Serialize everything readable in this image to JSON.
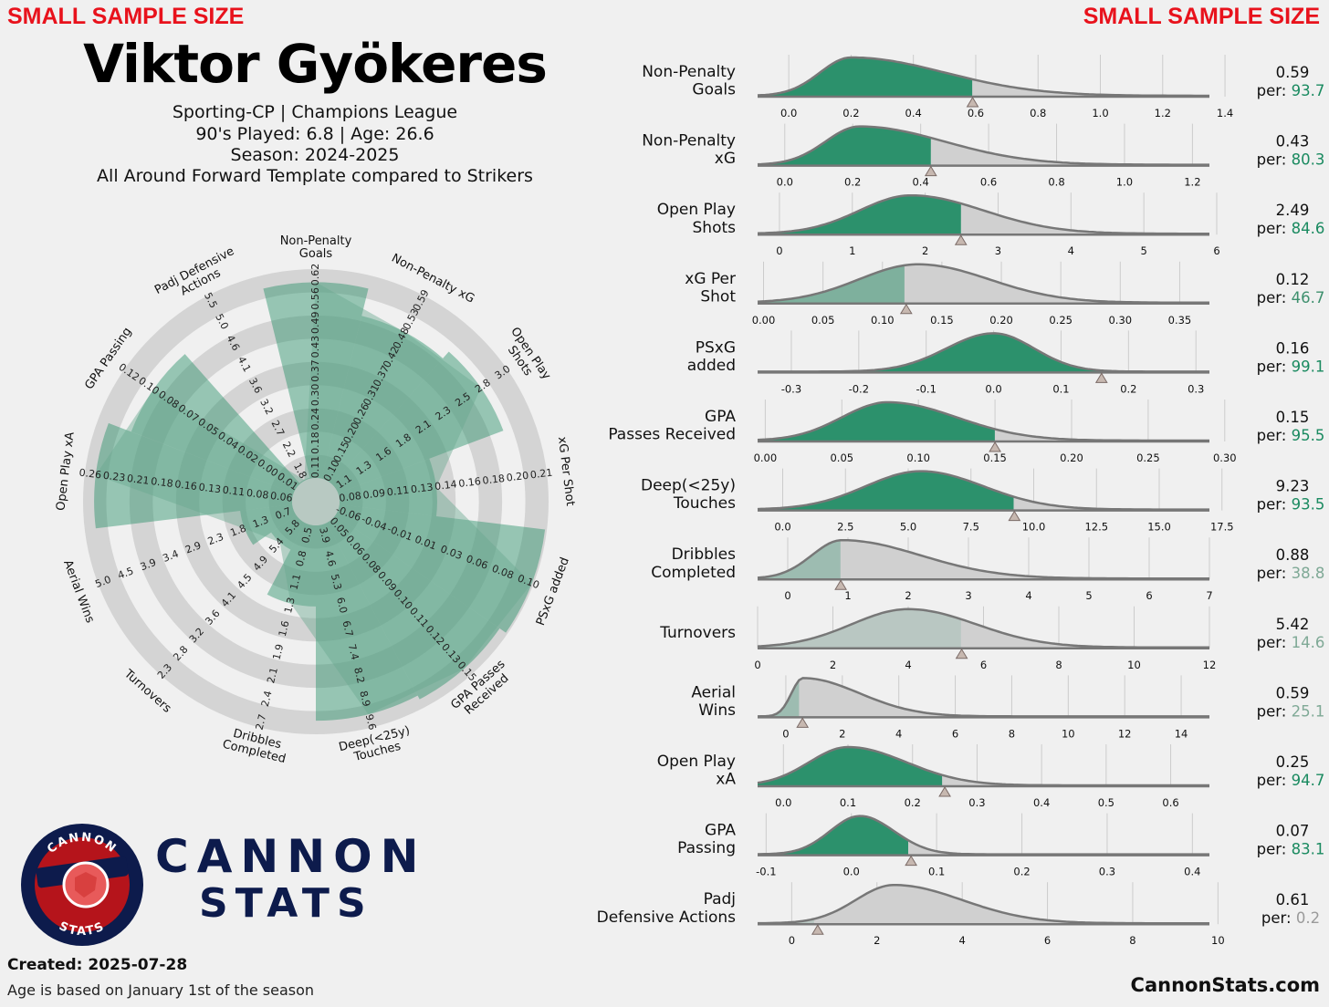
{
  "header": {
    "warning_left": "SMALL SAMPLE SIZE",
    "warning_right": "SMALL SAMPLE SIZE",
    "player": "Viktor Gyökeres",
    "line1": "Sporting-CP | Champions League",
    "line2": "90's Played: 6.8 | Age: 26.6",
    "line3": "Season: 2024-2025",
    "line4": "All Around Forward Template compared to Strikers"
  },
  "footer": {
    "created": "Created: 2025-07-28",
    "age_note": "Age is based on January 1st of the season",
    "site": "CannonStats.com"
  },
  "logo": {
    "ring_top": "CANNON",
    "ring_bottom": "STATS",
    "brand_line1": "CANNON",
    "brand_line2": "STATS"
  },
  "colors": {
    "background": "#f0f0f0",
    "accent": "#1a8a60",
    "ring": "#d4d4d4",
    "warning": "#e8121c",
    "navy": "#0d1b4c",
    "curve": "#777777"
  },
  "chart_data": [
    {
      "type": "radar",
      "title": "Viktor Gyökeres",
      "metrics": [
        {
          "label": "Non-Penalty Goals",
          "ticks": [
            "0.11",
            "0.18",
            "0.24",
            "0.30",
            "0.37",
            "0.43",
            "0.49",
            "0.56",
            "0.62"
          ],
          "percentile": 93.7
        },
        {
          "label": "Non-Penalty xG",
          "ticks": [
            "0.10",
            "0.15",
            "0.20",
            "0.26",
            "0.31",
            "0.37",
            "0.42",
            "0.48",
            "0.53",
            "0.59"
          ],
          "percentile": 80.3
        },
        {
          "label": "Open Play Shots",
          "ticks": [
            "1.1",
            "1.3",
            "1.6",
            "1.8",
            "2.1",
            "2.3",
            "2.5",
            "2.8",
            "3.0"
          ],
          "percentile": 84.6
        },
        {
          "label": "xG Per Shot",
          "ticks": [
            "0.08",
            "0.09",
            "0.11",
            "0.13",
            "0.14",
            "0.16",
            "0.18",
            "0.20",
            "0.21"
          ],
          "percentile": 46.7
        },
        {
          "label": "PSxG added",
          "ticks": [
            "-0.06",
            "-0.04",
            "-0.01",
            "0.01",
            "0.03",
            "0.06",
            "0.08",
            "0.10"
          ],
          "percentile": 99.1
        },
        {
          "label": "GPA Passes Received",
          "ticks": [
            "0.05",
            "0.06",
            "0.08",
            "0.09",
            "0.10",
            "0.11",
            "0.12",
            "0.13",
            "0.15"
          ],
          "percentile": 95.5
        },
        {
          "label": "Deep(<25y) Touches",
          "ticks": [
            "3.9",
            "4.6",
            "5.3",
            "6.0",
            "6.7",
            "7.4",
            "8.2",
            "8.9",
            "9.6"
          ],
          "percentile": 93.5
        },
        {
          "label": "Dribbles Completed",
          "ticks": [
            "0.5",
            "0.8",
            "1.1",
            "1.3",
            "1.6",
            "1.9",
            "2.1",
            "2.4",
            "2.7"
          ],
          "percentile": 38.8
        },
        {
          "label": "Turnovers",
          "ticks": [
            "5.8",
            "5.4",
            "4.9",
            "4.5",
            "4.1",
            "3.6",
            "3.2",
            "2.8",
            "2.3"
          ],
          "percentile": 14.6
        },
        {
          "label": "Aerial Wins",
          "ticks": [
            "0.7",
            "1.3",
            "1.8",
            "2.3",
            "2.9",
            "3.4",
            "3.9",
            "4.5",
            "5.0"
          ],
          "percentile": 25.1
        },
        {
          "label": "Open Play xA",
          "ticks": [
            "0.06",
            "0.08",
            "0.11",
            "0.13",
            "0.16",
            "0.18",
            "0.21",
            "0.23",
            "0.26"
          ],
          "percentile": 94.7
        },
        {
          "label": "GPA Passing",
          "ticks": [
            "0.01",
            "0.00",
            "0.02",
            "0.04",
            "0.05",
            "0.07",
            "0.08",
            "0.10",
            "0.12"
          ],
          "percentile": 83.1
        },
        {
          "label": "Padj Defensive Actions",
          "ticks": [
            "1.8",
            "2.2",
            "2.7",
            "3.2",
            "3.6",
            "4.1",
            "4.6",
            "5.0",
            "5.5"
          ],
          "percentile": 0.2
        }
      ]
    },
    {
      "type": "density",
      "rows": [
        {
          "label": [
            "Non-Penalty",
            "Goals"
          ],
          "value": "0.59",
          "per": "93.7",
          "min": -0.1,
          "max": 1.35,
          "peak": 0.2,
          "sw": 0.1,
          "sw2": 0.3,
          "v": 0.59,
          "pct": 93.7,
          "ticks": [
            "0.0",
            "0.2",
            "0.4",
            "0.6",
            "0.8",
            "1.0",
            "1.2",
            "1.4"
          ],
          "tickvals": [
            0,
            0.2,
            0.4,
            0.6,
            0.8,
            1.0,
            1.2,
            1.4
          ]
        },
        {
          "label": [
            "Non-Penalty",
            "xG"
          ],
          "value": "0.43",
          "per": "80.3",
          "min": -0.08,
          "max": 1.25,
          "peak": 0.22,
          "sw": 0.1,
          "sw2": 0.25,
          "v": 0.43,
          "pct": 80.3,
          "ticks": [
            "0.0",
            "0.2",
            "0.4",
            "0.6",
            "0.8",
            "1.0",
            "1.2"
          ],
          "tickvals": [
            0,
            0.2,
            0.4,
            0.6,
            0.8,
            1.0,
            1.2
          ]
        },
        {
          "label": [
            "Open Play",
            "Shots"
          ],
          "value": "2.49",
          "per": "84.6",
          "min": -0.3,
          "max": 5.9,
          "peak": 1.8,
          "sw": 0.7,
          "sw2": 1.0,
          "v": 2.49,
          "pct": 84.6,
          "ticks": [
            "0",
            "1",
            "2",
            "3",
            "4",
            "5",
            "6"
          ],
          "tickvals": [
            0,
            1,
            2,
            3,
            4,
            5,
            6
          ]
        },
        {
          "label": [
            "xG Per",
            "Shot"
          ],
          "value": "0.12",
          "per": "46.7",
          "min": -0.005,
          "max": 0.375,
          "peak": 0.13,
          "sw": 0.05,
          "sw2": 0.06,
          "v": 0.12,
          "pct": 46.7,
          "ticks": [
            "0.00",
            "0.05",
            "0.10",
            "0.15",
            "0.20",
            "0.25",
            "0.30",
            "0.35"
          ],
          "tickvals": [
            0,
            0.05,
            0.1,
            0.15,
            0.2,
            0.25,
            0.3,
            0.35
          ]
        },
        {
          "label": [
            "PSxG",
            "added"
          ],
          "value": "0.16",
          "per": "99.1",
          "min": -0.35,
          "max": 0.32,
          "peak": 0.0,
          "sw": 0.07,
          "sw2": 0.06,
          "v": 0.16,
          "pct": 99.1,
          "ticks": [
            "-0.3",
            "-0.2",
            "-0.1",
            "0.0",
            "0.1",
            "0.2",
            "0.3"
          ],
          "tickvals": [
            -0.3,
            -0.2,
            -0.1,
            0,
            0.1,
            0.2,
            0.3
          ]
        },
        {
          "label": [
            "GPA",
            "Passes Received"
          ],
          "value": "0.15",
          "per": "95.5",
          "min": -0.005,
          "max": 0.29,
          "peak": 0.08,
          "sw": 0.03,
          "sw2": 0.045,
          "v": 0.15,
          "pct": 95.5,
          "ticks": [
            "0.00",
            "0.05",
            "0.10",
            "0.15",
            "0.20",
            "0.25",
            "0.30"
          ],
          "tickvals": [
            0,
            0.05,
            0.1,
            0.15,
            0.2,
            0.25,
            0.3
          ]
        },
        {
          "label": [
            "Deep(<25y)",
            "Touches"
          ],
          "value": "9.23",
          "per": "93.5",
          "min": -1.0,
          "max": 17.0,
          "peak": 5.5,
          "sw": 2.2,
          "sw2": 2.5,
          "v": 9.23,
          "pct": 93.5,
          "ticks": [
            "0.0",
            "2.5",
            "5.0",
            "7.5",
            "10.0",
            "12.5",
            "15.0",
            "17.5"
          ],
          "tickvals": [
            0,
            2.5,
            5,
            7.5,
            10,
            12.5,
            15,
            17.5
          ]
        },
        {
          "label": [
            "Dribbles",
            "Completed"
          ],
          "value": "0.88",
          "per": "38.8",
          "min": -0.5,
          "max": 7.0,
          "peak": 0.9,
          "sw": 0.5,
          "sw2": 1.3,
          "v": 0.88,
          "pct": 38.8,
          "ticks": [
            "0",
            "1",
            "2",
            "3",
            "4",
            "5",
            "6",
            "7"
          ],
          "tickvals": [
            0,
            1,
            2,
            3,
            4,
            5,
            6,
            7
          ]
        },
        {
          "label": [
            "Turnovers"
          ],
          "value": "5.42",
          "per": "14.6",
          "min": 0.0,
          "max": 12.0,
          "peak": 4.0,
          "sw": 1.5,
          "sw2": 1.8,
          "v": 5.42,
          "pct": 14.6,
          "ticks": [
            "0",
            "2",
            "4",
            "6",
            "8",
            "10",
            "12"
          ],
          "tickvals": [
            0,
            2,
            4,
            6,
            8,
            10,
            12
          ]
        },
        {
          "label": [
            "Aerial",
            "Wins"
          ],
          "value": "0.59",
          "per": "25.1",
          "min": -1.0,
          "max": 15.0,
          "peak": 0.6,
          "sw": 0.4,
          "sw2": 2.0,
          "v": 0.59,
          "pct": 25.1,
          "ticks": [
            "0",
            "2",
            "4",
            "6",
            "8",
            "10",
            "12",
            "14"
          ],
          "tickvals": [
            0,
            2,
            4,
            6,
            8,
            10,
            12,
            14
          ]
        },
        {
          "label": [
            "Open Play",
            "xA"
          ],
          "value": "0.25",
          "per": "94.7",
          "min": -0.04,
          "max": 0.66,
          "peak": 0.1,
          "sw": 0.06,
          "sw2": 0.09,
          "v": 0.25,
          "pct": 94.7,
          "ticks": [
            "0.0",
            "0.1",
            "0.2",
            "0.3",
            "0.4",
            "0.5",
            "0.6"
          ],
          "tickvals": [
            0,
            0.1,
            0.2,
            0.3,
            0.4,
            0.5,
            0.6
          ]
        },
        {
          "label": [
            "GPA",
            "Passing"
          ],
          "value": "0.07",
          "per": "83.1",
          "min": -0.11,
          "max": 0.42,
          "peak": 0.01,
          "sw": 0.035,
          "sw2": 0.04,
          "v": 0.07,
          "pct": 83.1,
          "ticks": [
            "-0.1",
            "0.0",
            "0.1",
            "0.2",
            "0.3",
            "0.4"
          ],
          "tickvals": [
            -0.1,
            0,
            0.1,
            0.2,
            0.3,
            0.4
          ]
        },
        {
          "label": [
            "Padj",
            "Defensive Actions"
          ],
          "value": "0.61",
          "per": "0.2",
          "min": -0.8,
          "max": 9.8,
          "peak": 2.4,
          "sw": 0.9,
          "sw2": 1.6,
          "v": 0.61,
          "pct": 0.2,
          "ticks": [
            "0",
            "2",
            "4",
            "6",
            "8",
            "10"
          ],
          "tickvals": [
            0,
            2,
            4,
            6,
            8,
            10
          ]
        }
      ]
    }
  ]
}
